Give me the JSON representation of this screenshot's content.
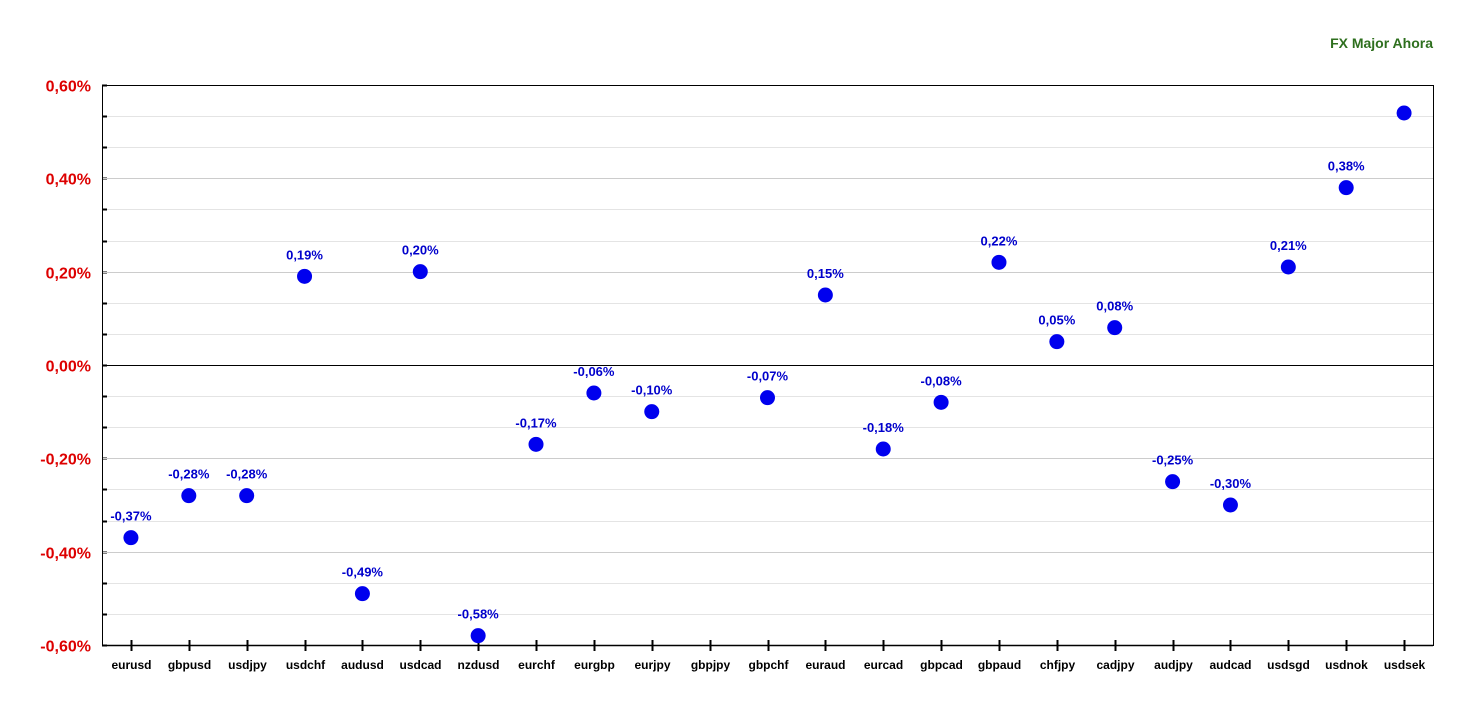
{
  "chart_data": {
    "type": "scatter",
    "legend_label": "FX Major Ahora",
    "legend_position": "top-right",
    "categories": [
      "eurusd",
      "gbpusd",
      "usdjpy",
      "usdchf",
      "audusd",
      "usdcad",
      "nzdusd",
      "eurchf",
      "eurgbp",
      "eurjpy",
      "gbpjpy",
      "gbpchf",
      "euraud",
      "eurcad",
      "gbpcad",
      "gbpaud",
      "chfjpy",
      "cadjpy",
      "audjpy",
      "audcad",
      "usdsgd",
      "usdnok",
      "usdsek"
    ],
    "values": [
      -0.37,
      -0.28,
      -0.28,
      0.19,
      -0.49,
      0.2,
      -0.58,
      -0.17,
      -0.06,
      -0.1,
      null,
      -0.07,
      0.15,
      -0.18,
      -0.08,
      0.22,
      0.05,
      0.08,
      -0.25,
      -0.3,
      0.21,
      0.38,
      0.54
    ],
    "point_labels": [
      "-0,37%",
      "-0,28%",
      "-0,28%",
      "0,19%",
      "-0,49%",
      "0,20%",
      "-0,58%",
      "-0,17%",
      "-0,06%",
      "-0,10%",
      "",
      "-0,07%",
      "0,15%",
      "-0,18%",
      "-0,08%",
      "0,22%",
      "0,05%",
      "0,08%",
      "-0,25%",
      "-0,30%",
      "0,21%",
      "0,38%",
      ""
    ],
    "y_ticks": [
      0.6,
      0.4,
      0.2,
      0.0,
      -0.2,
      -0.4,
      -0.6
    ],
    "y_tick_labels": [
      "0,60%",
      "0,40%",
      "0,20%",
      "0,00%",
      "-0,20%",
      "-0,40%",
      "-0,60%"
    ],
    "ylim": [
      -0.6,
      0.6
    ],
    "grid": true,
    "xlabel": "",
    "ylabel": "",
    "colors": {
      "marker": "#0000ee",
      "point_label": "#0000cc",
      "y_tick_label": "#dd0000",
      "x_tick_label": "#000000",
      "legend": "#2e6f1e",
      "grid": "#cccccc",
      "axis": "#000000"
    }
  }
}
